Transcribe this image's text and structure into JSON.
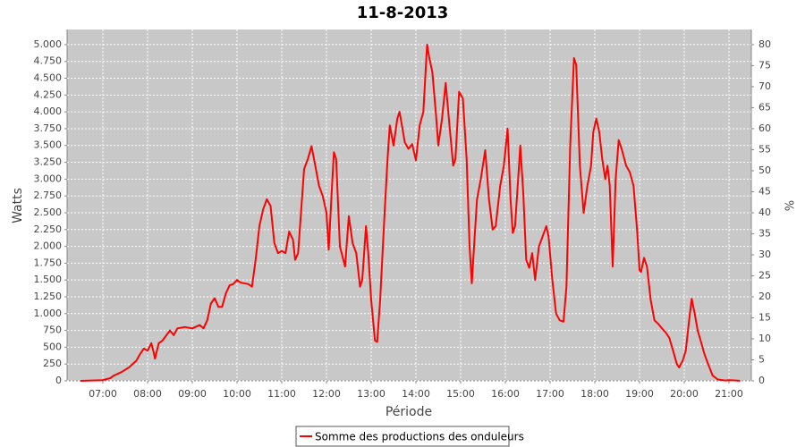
{
  "chart_data": {
    "type": "line",
    "title": "11-8-2013",
    "x_label": "Période",
    "y_label": "Watts",
    "y2_label": "%",
    "xlim": [
      "06:12",
      "21:30"
    ],
    "xticks": [
      "07:00",
      "08:00",
      "09:00",
      "10:00",
      "11:00",
      "12:00",
      "13:00",
      "14:00",
      "15:00",
      "16:00",
      "17:00",
      "18:00",
      "19:00",
      "20:00",
      "21:00"
    ],
    "ylim": [
      0,
      5225
    ],
    "yticks": [
      0,
      250,
      500,
      750,
      {
        "value": 1000,
        "label": "1.000"
      },
      {
        "value": 1250,
        "label": "1.250"
      },
      {
        "value": 1500,
        "label": "1.500"
      },
      {
        "value": 1750,
        "label": "1.750"
      },
      {
        "value": 2000,
        "label": "2.000"
      },
      {
        "value": 2250,
        "label": "2.250"
      },
      {
        "value": 2500,
        "label": "2.500"
      },
      {
        "value": 2750,
        "label": "2.750"
      },
      {
        "value": 3000,
        "label": "3.000"
      },
      {
        "value": 3250,
        "label": "3.250"
      },
      {
        "value": 3500,
        "label": "3.500"
      },
      {
        "value": 3750,
        "label": "3.750"
      },
      {
        "value": 4000,
        "label": "4.000"
      },
      {
        "value": 4250,
        "label": "4.250"
      },
      {
        "value": 4500,
        "label": "4.500"
      },
      {
        "value": 4750,
        "label": "4.750"
      },
      {
        "value": 5000,
        "label": "5.000"
      }
    ],
    "y2lim": [
      0,
      83.6
    ],
    "y2ticks": [
      0,
      5,
      10,
      15,
      20,
      25,
      30,
      35,
      40,
      45,
      50,
      55,
      60,
      65,
      70,
      75,
      80
    ],
    "grid": true,
    "legend": "bottom",
    "x": [
      "06:30",
      "06:45",
      "07:00",
      "07:10",
      "07:15",
      "07:25",
      "07:35",
      "07:45",
      "07:50",
      "07:55",
      "08:00",
      "08:05",
      "08:08",
      "08:10",
      "08:15",
      "08:20",
      "08:30",
      "08:35",
      "08:40",
      "08:50",
      "09:00",
      "09:10",
      "09:15",
      "09:20",
      "09:25",
      "09:30",
      "09:35",
      "09:40",
      "09:45",
      "09:50",
      "09:55",
      "10:00",
      "10:05",
      "10:15",
      "10:20",
      "10:25",
      "10:30",
      "10:35",
      "10:40",
      "10:45",
      "10:50",
      "10:55",
      "11:00",
      "11:05",
      "11:10",
      "11:15",
      "11:18",
      "11:22",
      "11:30",
      "11:35",
      "11:40",
      "11:45",
      "11:50",
      "11:55",
      "12:00",
      "12:03",
      "12:07",
      "12:10",
      "12:13",
      "12:18",
      "12:25",
      "12:30",
      "12:35",
      "12:40",
      "12:45",
      "12:48",
      "12:53",
      "12:56",
      "13:00",
      "13:05",
      "13:08",
      "13:12",
      "13:18",
      "13:22",
      "13:25",
      "13:30",
      "13:35",
      "13:38",
      "13:42",
      "13:45",
      "13:50",
      "13:55",
      "14:00",
      "14:05",
      "14:10",
      "14:15",
      "14:18",
      "14:22",
      "14:27",
      "14:30",
      "14:35",
      "14:40",
      "14:45",
      "14:50",
      "14:53",
      "14:58",
      "15:03",
      "15:08",
      "15:12",
      "15:15",
      "15:18",
      "15:22",
      "15:27",
      "15:33",
      "15:38",
      "15:43",
      "15:47",
      "15:53",
      "15:58",
      "16:03",
      "16:07",
      "16:10",
      "16:13",
      "16:16",
      "16:20",
      "16:24",
      "16:28",
      "16:32",
      "16:36",
      "16:40",
      "16:45",
      "16:50",
      "16:55",
      "16:58",
      "17:03",
      "17:08",
      "17:13",
      "17:18",
      "17:22",
      "17:27",
      "17:32",
      "17:35",
      "17:40",
      "17:45",
      "17:50",
      "17:55",
      "17:58",
      "18:02",
      "18:06",
      "18:10",
      "18:14",
      "18:17",
      "18:20",
      "18:24",
      "18:28",
      "18:32",
      "18:36",
      "18:42",
      "18:47",
      "18:52",
      "18:57",
      "19:00",
      "19:02",
      "19:06",
      "19:10",
      "19:15",
      "19:20",
      "19:25",
      "19:30",
      "19:35",
      "19:40",
      "19:45",
      "19:50",
      "19:53",
      "19:58",
      "20:02",
      "20:06",
      "20:10",
      "20:14",
      "20:18",
      "20:22",
      "20:27",
      "20:32",
      "20:38",
      "20:45",
      "20:55",
      "21:00",
      "21:10",
      "21:15"
    ],
    "series": [
      {
        "name": "Somme des productions des onduleurs",
        "color": "#ff0000",
        "values": [
          0,
          5,
          10,
          40,
          80,
          130,
          200,
          300,
          400,
          480,
          450,
          560,
          430,
          330,
          560,
          600,
          750,
          680,
          780,
          800,
          780,
          830,
          780,
          900,
          1150,
          1230,
          1100,
          1100,
          1300,
          1420,
          1440,
          1500,
          1460,
          1440,
          1400,
          1800,
          2300,
          2550,
          2700,
          2600,
          2050,
          1900,
          1930,
          1900,
          2220,
          2100,
          1800,
          1900,
          3150,
          3300,
          3490,
          3200,
          2900,
          2750,
          2500,
          1950,
          2800,
          3400,
          3300,
          2000,
          1700,
          2450,
          2050,
          1900,
          1400,
          1500,
          2300,
          1900,
          1200,
          600,
          580,
          1200,
          2500,
          3300,
          3800,
          3500,
          3900,
          4000,
          3750,
          3550,
          3450,
          3520,
          3280,
          3800,
          4000,
          5000,
          4800,
          4600,
          3950,
          3500,
          3900,
          4430,
          3800,
          3200,
          3300,
          4300,
          4200,
          3300,
          2000,
          1450,
          2000,
          2700,
          3000,
          3430,
          2700,
          2250,
          2300,
          2900,
          3200,
          3750,
          2700,
          2200,
          2300,
          2800,
          3500,
          2800,
          1800,
          1680,
          1900,
          1500,
          2000,
          2150,
          2300,
          2150,
          1500,
          1000,
          900,
          880,
          1400,
          3500,
          4800,
          4700,
          3200,
          2500,
          2900,
          3200,
          3700,
          3900,
          3700,
          3300,
          3000,
          3200,
          2900,
          1700,
          3000,
          3580,
          3450,
          3200,
          3100,
          2900,
          2200,
          1650,
          1620,
          1830,
          1700,
          1200,
          900,
          850,
          780,
          720,
          640,
          450,
          250,
          200,
          300,
          450,
          850,
          1220,
          1000,
          750,
          600,
          400,
          250,
          80,
          20,
          5,
          10,
          5,
          0
        ]
      }
    ]
  }
}
